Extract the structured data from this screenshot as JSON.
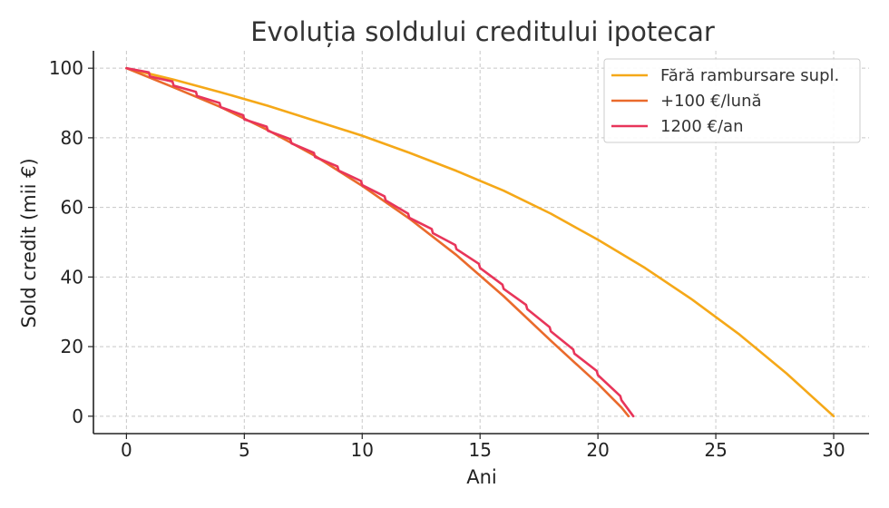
{
  "chart_data": {
    "type": "line",
    "title": "Evoluția soldului creditului ipotecar",
    "xlabel": "Ani",
    "ylabel": "Sold credit (mii €)",
    "xlim": [
      -1.4,
      31.5
    ],
    "ylim": [
      -5,
      105
    ],
    "xticks": [
      "0",
      "5",
      "10",
      "15",
      "20",
      "25",
      "30"
    ],
    "yticks": [
      "0",
      "20",
      "40",
      "60",
      "80",
      "100"
    ],
    "grid": true,
    "legend_position": "top-right",
    "series": [
      {
        "name": "Fără rambursare supl.",
        "color": "#f5a818",
        "x": [
          0,
          2,
          4,
          6,
          8,
          10,
          12,
          14,
          16,
          18,
          20,
          22,
          24,
          26,
          28,
          30
        ],
        "y": [
          100,
          96.7,
          93.1,
          89.2,
          84.9,
          80.6,
          75.7,
          70.5,
          64.8,
          58.2,
          50.7,
          42.6,
          33.5,
          23.5,
          12.3,
          0
        ]
      },
      {
        "name": "+100 €/lună",
        "color": "#ea6a2c",
        "x": [
          0,
          2,
          4,
          6,
          8,
          10,
          12,
          14,
          16,
          18,
          20,
          21,
          21.3
        ],
        "y": [
          100,
          94.5,
          88.8,
          82.2,
          74.8,
          66.2,
          56.8,
          46.3,
          34.5,
          21.7,
          9.3,
          2.5,
          0
        ]
      },
      {
        "name": "1200 €/an",
        "color": "#e8355a",
        "x": [
          0,
          0.95,
          1,
          1.95,
          2,
          2.95,
          3,
          3.95,
          4,
          4.95,
          5,
          5.95,
          6,
          6.95,
          7,
          7.95,
          8,
          8.95,
          9,
          9.95,
          10,
          10.95,
          11,
          11.95,
          12,
          12.95,
          13,
          13.95,
          14,
          14.95,
          15,
          15.95,
          16,
          16.95,
          17,
          17.95,
          18,
          18.95,
          19,
          19.95,
          20,
          20.95,
          21,
          21.5
        ],
        "y": [
          100,
          98.8,
          97.6,
          96.2,
          95.0,
          93.2,
          92.0,
          90.0,
          88.8,
          86.5,
          85.3,
          83.2,
          82.0,
          79.6,
          78.4,
          75.7,
          74.5,
          71.8,
          70.6,
          67.6,
          66.4,
          63.2,
          62.0,
          58.2,
          57.0,
          53.8,
          52.6,
          49.2,
          48.0,
          43.8,
          42.6,
          37.8,
          36.6,
          32.0,
          30.8,
          25.6,
          24.4,
          19.2,
          18.0,
          13.0,
          11.8,
          5.8,
          4.6,
          0
        ]
      }
    ]
  }
}
